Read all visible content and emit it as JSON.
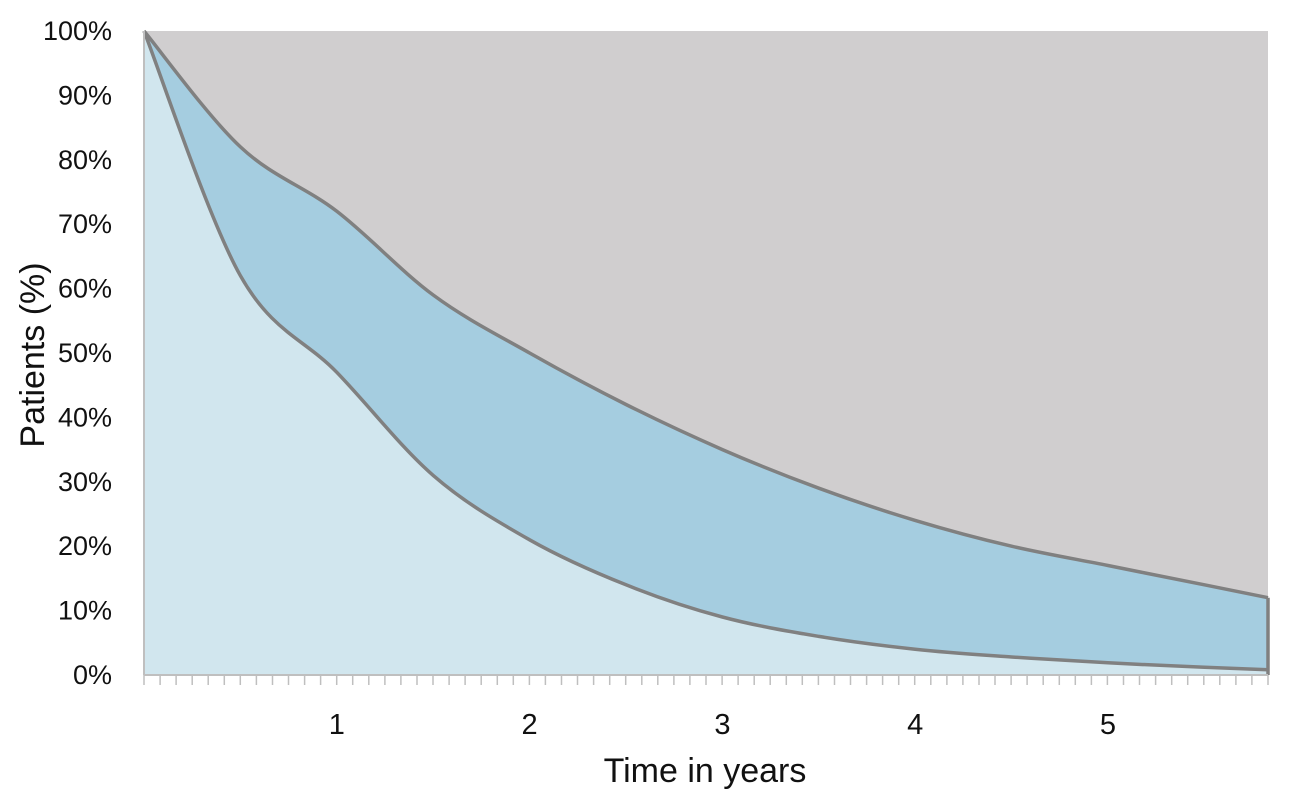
{
  "chart_data": {
    "type": "area",
    "title": "",
    "xlabel": "Time in years",
    "ylabel": "Patients (%)",
    "xlim": [
      0,
      5.83
    ],
    "ylim": [
      0,
      100
    ],
    "x_ticks": [
      "1",
      "2",
      "3",
      "4",
      "5"
    ],
    "y_ticks": [
      "0%",
      "10%",
      "20%",
      "30%",
      "40%",
      "50%",
      "60%",
      "70%",
      "80%",
      "90%",
      "100%"
    ],
    "grid": false,
    "legend": "none",
    "stacking": "cumulative",
    "x": [
      0,
      0.5,
      1,
      1.5,
      2,
      2.5,
      3,
      3.5,
      4,
      4.5,
      5,
      5.5,
      5.83
    ],
    "series": [
      {
        "values": [
          100,
          62,
          47,
          31,
          21,
          14,
          9,
          6,
          4,
          2.8,
          1.9,
          1.2,
          0.8
        ],
        "color": "#d1e6ee"
      },
      {
        "values": [
          100,
          82,
          72,
          59,
          50,
          42,
          35,
          29,
          24,
          20,
          17,
          14,
          12
        ],
        "color": "#a5cde0"
      },
      {
        "values": [
          100,
          100,
          100,
          100,
          100,
          100,
          100,
          100,
          100,
          100,
          100,
          100,
          100
        ],
        "color": "#d0cecf"
      }
    ],
    "line_color": "#808080",
    "axis_color": "#bfbfbf"
  }
}
